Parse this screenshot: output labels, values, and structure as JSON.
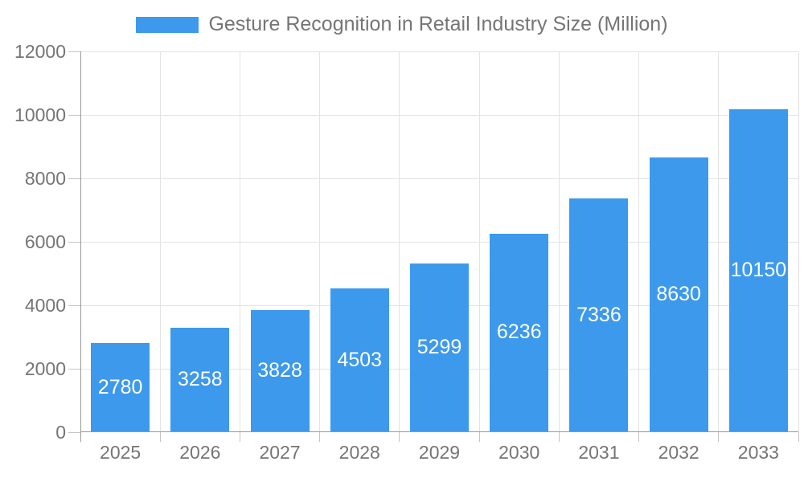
{
  "chart_data": {
    "type": "bar",
    "title": "Gesture Recognition in Retail Industry Size (Million)",
    "legend": {
      "label": "Gesture Recognition in Retail Industry Size (Million)",
      "position": "top"
    },
    "categories": [
      "2025",
      "2026",
      "2027",
      "2028",
      "2029",
      "2030",
      "2031",
      "2032",
      "2033"
    ],
    "values": [
      2780,
      3258,
      3828,
      4503,
      5299,
      6236,
      7336,
      8630,
      10150
    ],
    "xlabel": "",
    "ylabel": "",
    "ylim": [
      0,
      12000
    ],
    "y_ticks": [
      0,
      2000,
      4000,
      6000,
      8000,
      10000,
      12000
    ],
    "grid": true,
    "bar_labels_inside_center": true
  },
  "colors": {
    "bar": "#3D99EC",
    "bar_label": "#FFFFFF",
    "axis": "#999999",
    "tick": "#C4C4C4",
    "gridline": "#E3E3E3",
    "text": "#757575",
    "background": "#FFFFFF"
  }
}
